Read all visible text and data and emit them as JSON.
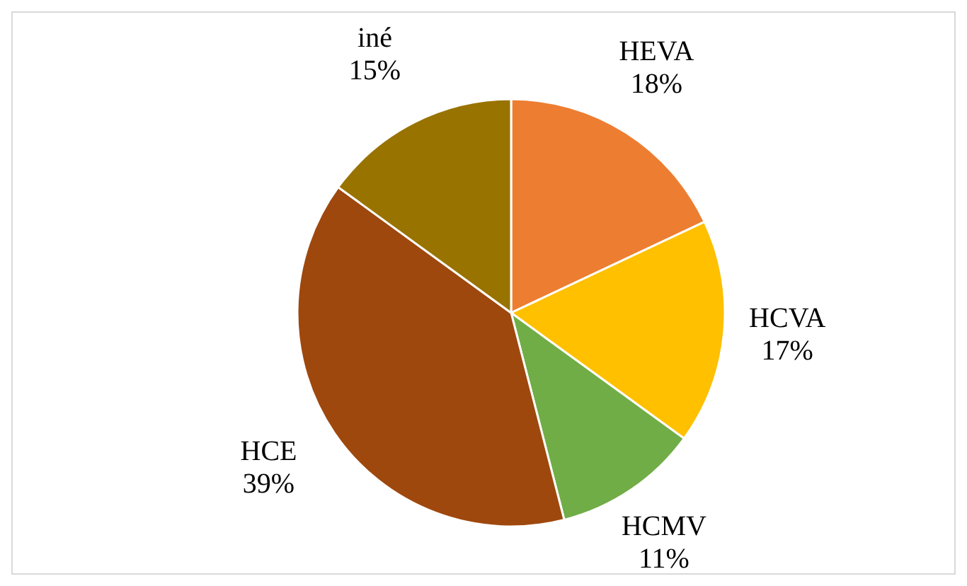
{
  "chart_data": {
    "type": "pie",
    "categories": [
      "HEVA",
      "HCVA",
      "HCMV",
      "HCE",
      "iné"
    ],
    "values": [
      18,
      17,
      11,
      39,
      15
    ],
    "colors": [
      "#ed7d31",
      "#ffc000",
      "#70ad47",
      "#9e480e",
      "#997300"
    ],
    "value_labels": [
      "18%",
      "17%",
      "11%",
      "39%",
      "15%"
    ]
  }
}
